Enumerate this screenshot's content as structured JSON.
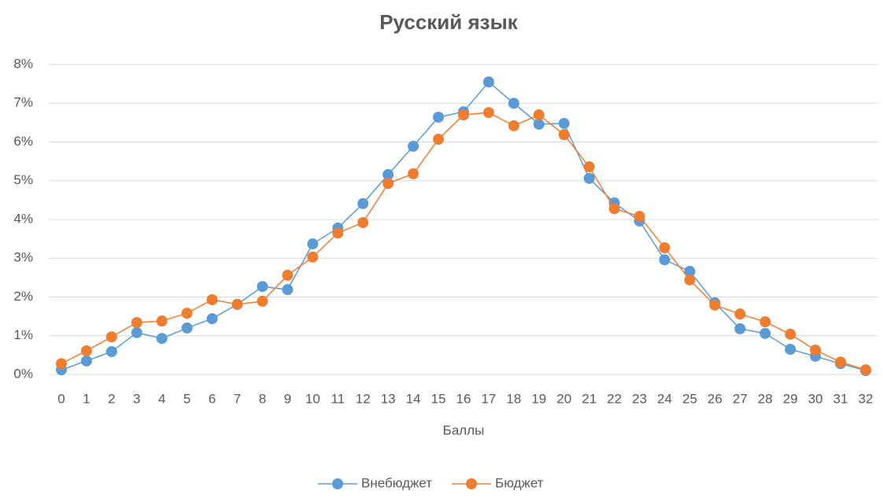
{
  "chart_data": {
    "type": "line",
    "title": "Русский язык",
    "x_label": "Баллы",
    "categories": [
      "0",
      "1",
      "2",
      "3",
      "4",
      "5",
      "6",
      "7",
      "8",
      "9",
      "10",
      "11",
      "12",
      "13",
      "14",
      "15",
      "16",
      "17",
      "18",
      "19",
      "20",
      "21",
      "22",
      "23",
      "24",
      "25",
      "26",
      "27",
      "28",
      "29",
      "30",
      "31",
      "32"
    ],
    "series": [
      {
        "name": "Внебюджет",
        "color": "#5b9bd5",
        "values": [
          0.12,
          0.35,
          0.59,
          1.08,
          0.93,
          1.2,
          1.44,
          1.81,
          2.27,
          2.19,
          3.37,
          3.78,
          4.41,
          5.16,
          5.89,
          6.64,
          6.78,
          7.55,
          7.0,
          6.46,
          6.48,
          5.06,
          4.43,
          3.96,
          2.96,
          2.66,
          1.85,
          1.18,
          1.06,
          0.65,
          0.47,
          0.28,
          0.1
        ]
      },
      {
        "name": "Бюджет",
        "color": "#ed7d31",
        "values": [
          0.28,
          0.61,
          0.97,
          1.34,
          1.38,
          1.58,
          1.93,
          1.81,
          1.89,
          2.56,
          3.03,
          3.65,
          3.92,
          4.93,
          5.18,
          6.07,
          6.7,
          6.76,
          6.42,
          6.7,
          6.19,
          5.36,
          4.28,
          4.08,
          3.27,
          2.44,
          1.79,
          1.56,
          1.36,
          1.04,
          0.63,
          0.32,
          0.12
        ]
      }
    ],
    "ylim": [
      0,
      8
    ],
    "yticks": [
      {
        "value": 0,
        "label": "0%"
      },
      {
        "value": 1,
        "label": "1%"
      },
      {
        "value": 2,
        "label": "2%"
      },
      {
        "value": 3,
        "label": "3%"
      },
      {
        "value": 4,
        "label": "4%"
      },
      {
        "value": 5,
        "label": "5%"
      },
      {
        "value": 6,
        "label": "6%"
      },
      {
        "value": 7,
        "label": "7%"
      },
      {
        "value": 8,
        "label": "8%"
      }
    ],
    "grid": true,
    "legend": "bottom"
  }
}
